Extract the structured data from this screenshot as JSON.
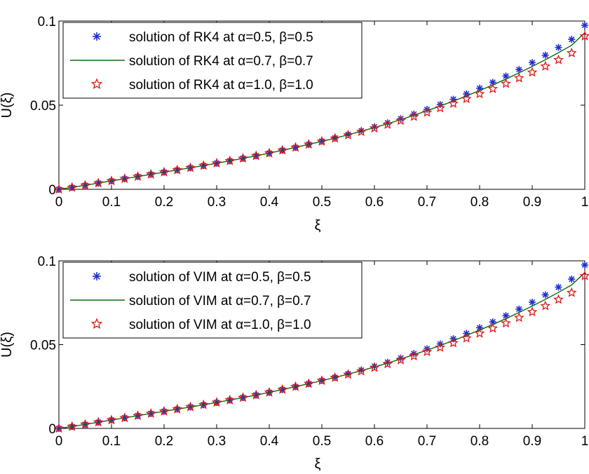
{
  "chart_data": [
    {
      "type": "line",
      "xlabel": "ξ",
      "ylabel": "U(ξ)",
      "xlim": [
        0,
        1
      ],
      "ylim": [
        0,
        0.1
      ],
      "xticks": [
        "0",
        "0.1",
        "0.2",
        "0.3",
        "0.4",
        "0.5",
        "0.6",
        "0.7",
        "0.8",
        "0.9",
        "1"
      ],
      "yticks": [
        "0",
        "0.05",
        "0.1"
      ],
      "legend_position": "top-left",
      "x": [
        0,
        0.025,
        0.05,
        0.075,
        0.1,
        0.125,
        0.15,
        0.175,
        0.2,
        0.225,
        0.25,
        0.275,
        0.3,
        0.325,
        0.35,
        0.375,
        0.4,
        0.425,
        0.45,
        0.475,
        0.5,
        0.525,
        0.55,
        0.575,
        0.6,
        0.625,
        0.65,
        0.675,
        0.7,
        0.725,
        0.75,
        0.775,
        0.8,
        0.825,
        0.85,
        0.875,
        0.9,
        0.925,
        0.95,
        0.975,
        1.0
      ],
      "series": [
        {
          "name": "solution of RK4 at α=0.5,  β=0.5",
          "marker": "asterisk",
          "color": "#1f2fd0",
          "values": [
            0,
            0.0011,
            0.0024,
            0.0037,
            0.005,
            0.0063,
            0.0076,
            0.0089,
            0.0102,
            0.0115,
            0.0128,
            0.0141,
            0.0155,
            0.0169,
            0.0184,
            0.0199,
            0.0215,
            0.0232,
            0.0249,
            0.0267,
            0.0286,
            0.0305,
            0.0326,
            0.0348,
            0.0371,
            0.0395,
            0.042,
            0.0447,
            0.0475,
            0.0504,
            0.0535,
            0.0567,
            0.0601,
            0.0636,
            0.0673,
            0.0712,
            0.0753,
            0.0797,
            0.0843,
            0.0891,
            0.0975
          ]
        },
        {
          "name": "solution of RK4 at α=0.7,  β=0.7",
          "marker": "line",
          "color": "#0b6b0b",
          "values": [
            0,
            0.0011,
            0.0024,
            0.0037,
            0.005,
            0.0063,
            0.0076,
            0.0089,
            0.0102,
            0.0115,
            0.0128,
            0.0141,
            0.0155,
            0.0169,
            0.0184,
            0.0199,
            0.0215,
            0.0232,
            0.0249,
            0.0267,
            0.0285,
            0.0304,
            0.0324,
            0.0345,
            0.0367,
            0.039,
            0.0414,
            0.044,
            0.0467,
            0.0495,
            0.0524,
            0.0555,
            0.0587,
            0.062,
            0.0655,
            0.0692,
            0.073,
            0.077,
            0.0812,
            0.0856,
            0.093
          ]
        },
        {
          "name": "solution of RK4 at α=1.0,  β=1.0",
          "marker": "star",
          "color": "#e01818",
          "values": [
            0,
            0.0011,
            0.0024,
            0.0037,
            0.005,
            0.0063,
            0.0076,
            0.0089,
            0.0102,
            0.0115,
            0.0128,
            0.0141,
            0.0155,
            0.0169,
            0.0184,
            0.0199,
            0.0215,
            0.0232,
            0.0249,
            0.0267,
            0.0285,
            0.0303,
            0.0322,
            0.0342,
            0.0363,
            0.0385,
            0.0408,
            0.0432,
            0.0457,
            0.0483,
            0.051,
            0.0538,
            0.0567,
            0.0597,
            0.0628,
            0.0661,
            0.0695,
            0.0731,
            0.0769,
            0.081,
            0.091
          ]
        }
      ]
    },
    {
      "type": "line",
      "xlabel": "ξ",
      "ylabel": "U(ξ)",
      "xlim": [
        0,
        1
      ],
      "ylim": [
        0,
        0.1
      ],
      "xticks": [
        "0",
        "0.1",
        "0.2",
        "0.3",
        "0.4",
        "0.5",
        "0.6",
        "0.7",
        "0.8",
        "0.9",
        "1"
      ],
      "yticks": [
        "0",
        "0.05",
        "0.1"
      ],
      "legend_position": "top-left",
      "x": [
        0,
        0.025,
        0.05,
        0.075,
        0.1,
        0.125,
        0.15,
        0.175,
        0.2,
        0.225,
        0.25,
        0.275,
        0.3,
        0.325,
        0.35,
        0.375,
        0.4,
        0.425,
        0.45,
        0.475,
        0.5,
        0.525,
        0.55,
        0.575,
        0.6,
        0.625,
        0.65,
        0.675,
        0.7,
        0.725,
        0.75,
        0.775,
        0.8,
        0.825,
        0.85,
        0.875,
        0.9,
        0.925,
        0.95,
        0.975,
        1.0
      ],
      "series": [
        {
          "name": "solution of VIM at α=0.5,  β=0.5",
          "marker": "asterisk",
          "color": "#1f2fd0",
          "values": [
            0,
            0.0011,
            0.0024,
            0.0037,
            0.005,
            0.0063,
            0.0076,
            0.0089,
            0.0102,
            0.0115,
            0.0128,
            0.0141,
            0.0155,
            0.0169,
            0.0184,
            0.0199,
            0.0215,
            0.0232,
            0.0249,
            0.0267,
            0.0286,
            0.0305,
            0.0326,
            0.0348,
            0.0371,
            0.0395,
            0.042,
            0.0447,
            0.0475,
            0.0504,
            0.0535,
            0.0567,
            0.0601,
            0.0636,
            0.0673,
            0.0712,
            0.0753,
            0.0797,
            0.0843,
            0.0891,
            0.0975
          ]
        },
        {
          "name": "solution of VIM at α=0.7,  β=0.7",
          "marker": "line",
          "color": "#0b6b0b",
          "values": [
            0,
            0.0011,
            0.0024,
            0.0037,
            0.005,
            0.0063,
            0.0076,
            0.0089,
            0.0102,
            0.0115,
            0.0128,
            0.0141,
            0.0155,
            0.0169,
            0.0184,
            0.0199,
            0.0215,
            0.0232,
            0.0249,
            0.0267,
            0.0285,
            0.0304,
            0.0324,
            0.0345,
            0.0367,
            0.039,
            0.0414,
            0.044,
            0.0467,
            0.0495,
            0.0524,
            0.0555,
            0.0587,
            0.062,
            0.0655,
            0.0692,
            0.073,
            0.077,
            0.0812,
            0.0856,
            0.093
          ]
        },
        {
          "name": "solution of VIM at α=1.0,  β=1.0",
          "marker": "star",
          "color": "#e01818",
          "values": [
            0,
            0.0011,
            0.0024,
            0.0037,
            0.005,
            0.0063,
            0.0076,
            0.0089,
            0.0102,
            0.0115,
            0.0128,
            0.0141,
            0.0155,
            0.0169,
            0.0184,
            0.0199,
            0.0215,
            0.0232,
            0.0249,
            0.0267,
            0.0285,
            0.0303,
            0.0322,
            0.0342,
            0.0363,
            0.0385,
            0.0408,
            0.0432,
            0.0457,
            0.0483,
            0.051,
            0.0538,
            0.0567,
            0.0597,
            0.0628,
            0.0661,
            0.0695,
            0.0731,
            0.0769,
            0.081,
            0.091
          ]
        }
      ]
    }
  ]
}
